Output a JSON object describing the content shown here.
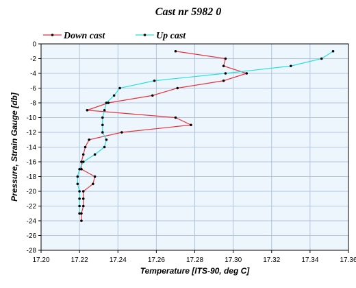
{
  "chart_data": {
    "type": "line",
    "title": "Cast nr 5982 0",
    "xlabel": "Temperature [ITS-90, deg C]",
    "ylabel": "Pressure, Strain Gauge [db]",
    "xlim": [
      17.2,
      17.36
    ],
    "ylim": [
      -28,
      0
    ],
    "x_ticks": [
      "17.20",
      "17.22",
      "17.24",
      "17.26",
      "17.28",
      "17.30",
      "17.32",
      "17.34",
      "17.36"
    ],
    "y_ticks": [
      "0",
      "-2",
      "-4",
      "-6",
      "-8",
      "-10",
      "-12",
      "-14",
      "-16",
      "-18",
      "-20",
      "-22",
      "-24",
      "-26",
      "-28"
    ],
    "legend_position": "top-left",
    "grid": true,
    "plot_background": "#eef6fd",
    "grid_color": "#b0c4de",
    "series": [
      {
        "name": "Down cast",
        "color": "#e8323c",
        "points": [
          [
            17.27,
            -1.0
          ],
          [
            17.296,
            -2.0
          ],
          [
            17.295,
            -3.0
          ],
          [
            17.307,
            -4.0
          ],
          [
            17.295,
            -5.0
          ],
          [
            17.271,
            -6.0
          ],
          [
            17.258,
            -7.0
          ],
          [
            17.235,
            -8.0
          ],
          [
            17.224,
            -9.0
          ],
          [
            17.27,
            -10.0
          ],
          [
            17.278,
            -11.0
          ],
          [
            17.242,
            -12.0
          ],
          [
            17.225,
            -13.0
          ],
          [
            17.223,
            -14.0
          ],
          [
            17.222,
            -15.0
          ],
          [
            17.221,
            -16.0
          ],
          [
            17.221,
            -17.0
          ],
          [
            17.228,
            -18.0
          ],
          [
            17.227,
            -19.0
          ],
          [
            17.222,
            -20.0
          ],
          [
            17.222,
            -21.0
          ],
          [
            17.222,
            -22.0
          ],
          [
            17.221,
            -23.0
          ],
          [
            17.221,
            -24.0
          ]
        ]
      },
      {
        "name": "Up cast",
        "color": "#22e0e0",
        "points": [
          [
            17.352,
            -1.0
          ],
          [
            17.346,
            -2.0
          ],
          [
            17.33,
            -3.0
          ],
          [
            17.296,
            -4.0
          ],
          [
            17.259,
            -5.0
          ],
          [
            17.241,
            -6.0
          ],
          [
            17.238,
            -7.0
          ],
          [
            17.234,
            -8.0
          ],
          [
            17.233,
            -9.0
          ],
          [
            17.232,
            -10.0
          ],
          [
            17.232,
            -11.0
          ],
          [
            17.232,
            -12.0
          ],
          [
            17.234,
            -13.0
          ],
          [
            17.233,
            -14.0
          ],
          [
            17.228,
            -15.0
          ],
          [
            17.222,
            -16.0
          ],
          [
            17.22,
            -17.0
          ],
          [
            17.219,
            -18.0
          ],
          [
            17.219,
            -19.0
          ],
          [
            17.22,
            -20.0
          ],
          [
            17.22,
            -21.0
          ],
          [
            17.22,
            -22.0
          ],
          [
            17.22,
            -23.0
          ]
        ]
      }
    ]
  }
}
